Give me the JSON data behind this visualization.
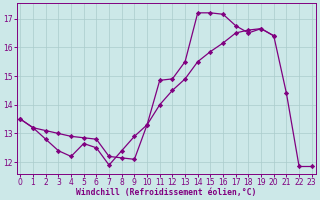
{
  "line1_x": [
    0,
    1,
    2,
    3,
    4,
    5,
    6,
    7,
    8,
    9,
    10,
    11,
    12,
    13,
    14,
    15,
    16,
    17,
    18,
    19,
    20,
    21,
    22,
    23
  ],
  "line1_y": [
    13.5,
    13.2,
    12.8,
    12.4,
    12.2,
    12.65,
    12.5,
    11.9,
    12.4,
    12.9,
    13.3,
    14.85,
    14.9,
    15.5,
    17.2,
    17.2,
    17.15,
    16.75,
    16.5,
    16.65,
    16.4,
    14.4,
    11.85,
    11.85
  ],
  "line2_x": [
    0,
    1,
    2,
    3,
    4,
    5,
    6,
    7,
    8,
    9,
    10,
    11,
    12,
    13,
    14,
    15,
    16,
    17,
    18,
    19,
    20
  ],
  "line2_y": [
    13.5,
    13.2,
    13.1,
    13.0,
    12.9,
    12.85,
    12.8,
    12.2,
    12.15,
    12.1,
    13.3,
    14.0,
    14.5,
    14.9,
    15.5,
    15.85,
    16.15,
    16.5,
    16.6,
    16.65,
    16.4
  ],
  "line_color": "#800080",
  "bg_color": "#cce8e8",
  "grid_color": "#aacccc",
  "xlabel": "Windchill (Refroidissement éolien,°C)",
  "xlim": [
    -0.3,
    23.3
  ],
  "ylim": [
    11.6,
    17.55
  ],
  "yticks": [
    12,
    13,
    14,
    15,
    16,
    17
  ],
  "xticks": [
    0,
    1,
    2,
    3,
    4,
    5,
    6,
    7,
    8,
    9,
    10,
    11,
    12,
    13,
    14,
    15,
    16,
    17,
    18,
    19,
    20,
    21,
    22,
    23
  ],
  "marker": "D",
  "markersize": 2.2,
  "linewidth": 0.9
}
